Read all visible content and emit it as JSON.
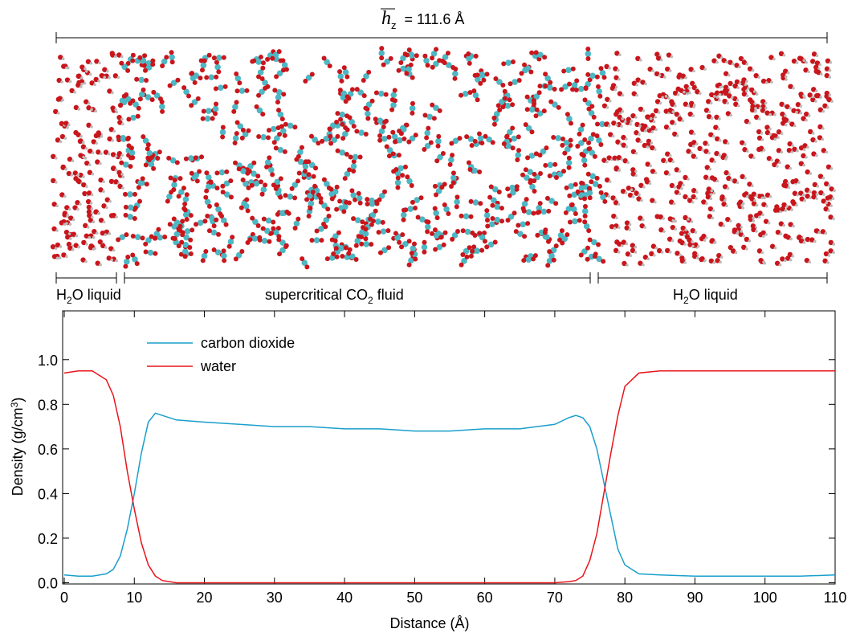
{
  "snapshot": {
    "length_symbol": "h",
    "length_subscript": "z",
    "length_value": "= 111.6 Å",
    "regions": [
      [
        "H",
        "2",
        "O liquid"
      ],
      [
        "supercritical CO",
        "2",
        " fluid"
      ],
      [
        "H",
        "2",
        "O liquid"
      ]
    ]
  },
  "chart_data": {
    "type": "line",
    "xlabel": "Distance (Å)",
    "ylabel": [
      "Density (g/cm",
      "3",
      ")"
    ],
    "x": [
      0,
      2,
      4,
      6,
      7,
      8,
      9,
      10,
      11,
      12,
      13,
      14,
      16,
      20,
      25,
      30,
      35,
      40,
      45,
      50,
      55,
      60,
      65,
      70,
      72,
      73,
      74,
      75,
      76,
      77,
      78,
      79,
      80,
      82,
      85,
      90,
      95,
      100,
      105,
      110
    ],
    "series": [
      {
        "name": "carbon dioxide",
        "color": "#1a9fcc",
        "values": [
          0.035,
          0.03,
          0.03,
          0.04,
          0.06,
          0.12,
          0.24,
          0.4,
          0.58,
          0.72,
          0.76,
          0.75,
          0.73,
          0.72,
          0.71,
          0.7,
          0.7,
          0.69,
          0.69,
          0.68,
          0.68,
          0.69,
          0.69,
          0.71,
          0.74,
          0.75,
          0.74,
          0.7,
          0.6,
          0.45,
          0.3,
          0.15,
          0.08,
          0.04,
          0.035,
          0.03,
          0.03,
          0.03,
          0.03,
          0.035
        ]
      },
      {
        "name": "water",
        "color": "#e8141b",
        "values": [
          0.94,
          0.95,
          0.95,
          0.91,
          0.84,
          0.7,
          0.5,
          0.33,
          0.18,
          0.08,
          0.03,
          0.01,
          0,
          0,
          0,
          0,
          0,
          0,
          0,
          0,
          0,
          0,
          0,
          0,
          0.005,
          0.01,
          0.03,
          0.1,
          0.22,
          0.4,
          0.58,
          0.75,
          0.88,
          0.94,
          0.95,
          0.95,
          0.95,
          0.95,
          0.95,
          0.95
        ]
      }
    ],
    "xlim": [
      0,
      110
    ],
    "xticks": [
      0,
      10,
      20,
      30,
      40,
      50,
      60,
      70,
      80,
      90,
      100,
      110
    ],
    "ylim": [
      0,
      1.1
    ],
    "yticks": [
      {
        "value": 0,
        "label": "0.0"
      },
      0.2,
      0.4,
      0.6,
      0.8,
      {
        "value": 1,
        "label": "1.0"
      }
    ],
    "legend": "upper left"
  }
}
